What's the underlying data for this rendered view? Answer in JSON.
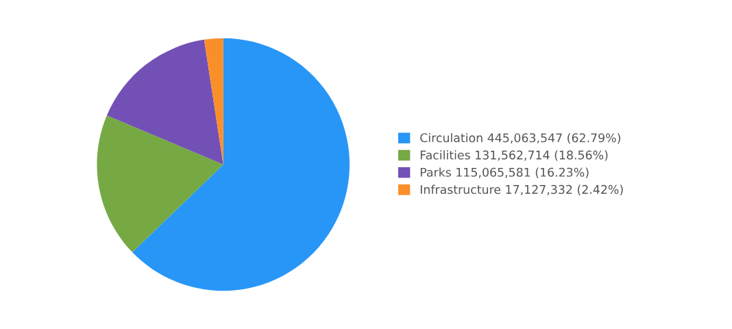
{
  "chart_data": {
    "type": "pie",
    "categories": [
      "Circulation",
      "Facilities",
      "Parks",
      "Infrastructure"
    ],
    "values": [
      445063547,
      131562714,
      115065581,
      17127332
    ],
    "colors": [
      "#2896f7",
      "#76a943",
      "#7350b5",
      "#fa8f2a"
    ],
    "value_labels": [
      "445,063,547 (62.79%)",
      "131,562,714 (18.56%)",
      "115,065,581 (16.23%)",
      "17,127,332 (2.42%)"
    ],
    "legend": "right"
  }
}
